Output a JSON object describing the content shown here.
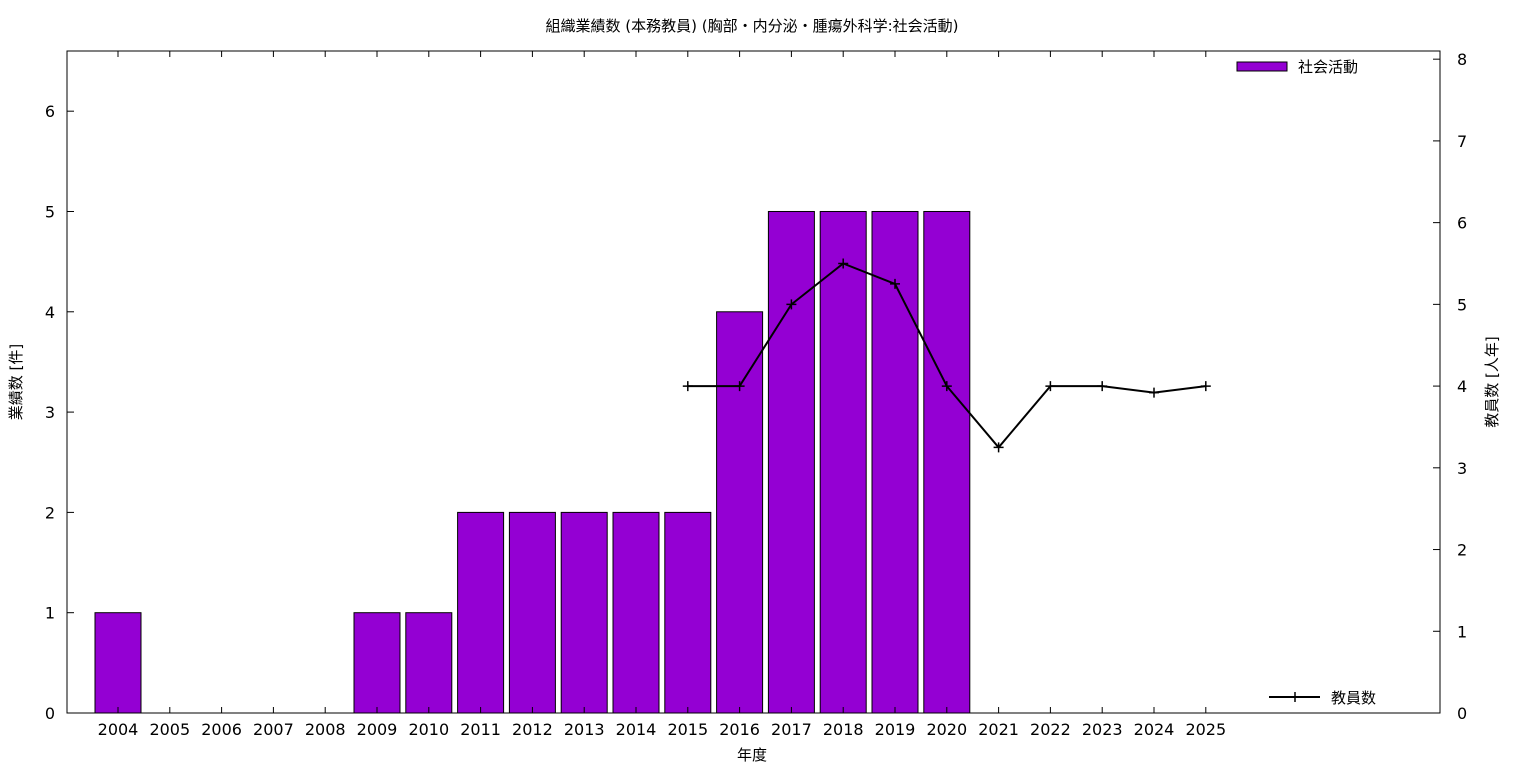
{
  "chart_data": {
    "type": "bar",
    "title": "組織業績数 (本務教員) (胸部・内分泌・腫瘍外科学:社会活動)",
    "xlabel": "年度",
    "ylabel": "業績数 [件]",
    "y2label": "教員数 [人年]",
    "categories": [
      "2004",
      "2005",
      "2006",
      "2007",
      "2008",
      "2009",
      "2010",
      "2011",
      "2012",
      "2013",
      "2014",
      "2015",
      "2016",
      "2017",
      "2018",
      "2019",
      "2020",
      "2021",
      "2022",
      "2023",
      "2024",
      "2025"
    ],
    "ylim": [
      0,
      6.6
    ],
    "yticks": [
      0,
      1,
      2,
      3,
      4,
      5,
      6
    ],
    "y2lim": [
      0,
      8.1
    ],
    "y2ticks": [
      0,
      1,
      2,
      3,
      4,
      5,
      6,
      7,
      8
    ],
    "grid": false,
    "series": [
      {
        "name": "社会活動",
        "type": "bar",
        "axis": "left",
        "color": "#9400d3",
        "values": [
          1,
          0,
          0,
          0,
          0,
          1,
          1,
          2,
          2,
          2,
          2,
          2,
          4,
          5,
          5,
          5,
          5,
          0,
          0,
          0,
          0,
          0
        ],
        "legend_position": "top-right"
      },
      {
        "name": "教員数",
        "type": "line",
        "axis": "right",
        "color": "#000000",
        "marker": "plus",
        "values": [
          null,
          null,
          null,
          null,
          null,
          null,
          null,
          null,
          null,
          null,
          null,
          4,
          4,
          5,
          5.5,
          5.25,
          4,
          3.25,
          4,
          4,
          3.92,
          4
        ],
        "legend_position": "bottom-right"
      }
    ]
  }
}
